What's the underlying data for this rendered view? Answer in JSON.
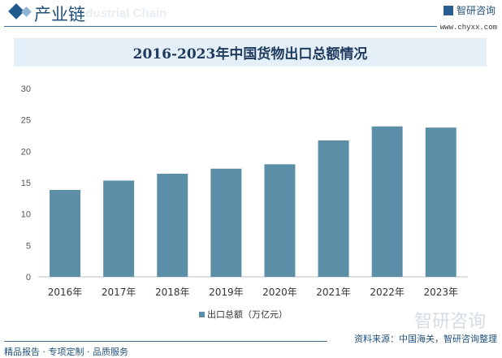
{
  "header": {
    "section_title": "产业链",
    "section_en": "Industrial Chain",
    "brand": "智研咨询",
    "url": "www.chyxx.com"
  },
  "footer": {
    "slogan": "精品报告 · 专项定制 · 品质服务",
    "source": "资料来源：中国海关，智研咨询整理",
    "watermark": "智研咨询"
  },
  "colors": {
    "bar": "#5b8fa8",
    "accent": "#1f4f7a",
    "title_band": "#e4eff8"
  },
  "chart_data": {
    "type": "bar",
    "title": "2016-2023年中国货物出口总额情况",
    "categories": [
      "2016年",
      "2017年",
      "2018年",
      "2019年",
      "2020年",
      "2021年",
      "2022年",
      "2023年"
    ],
    "series": [
      {
        "name": "出口总额（万亿元）",
        "values": [
          13.84,
          15.33,
          16.42,
          17.23,
          17.93,
          21.73,
          23.96,
          23.77
        ]
      }
    ],
    "ylim": [
      0,
      30
    ],
    "yticks": [
      0,
      5,
      10,
      15,
      20,
      25,
      30
    ],
    "grid": false,
    "legend": "bottom"
  }
}
